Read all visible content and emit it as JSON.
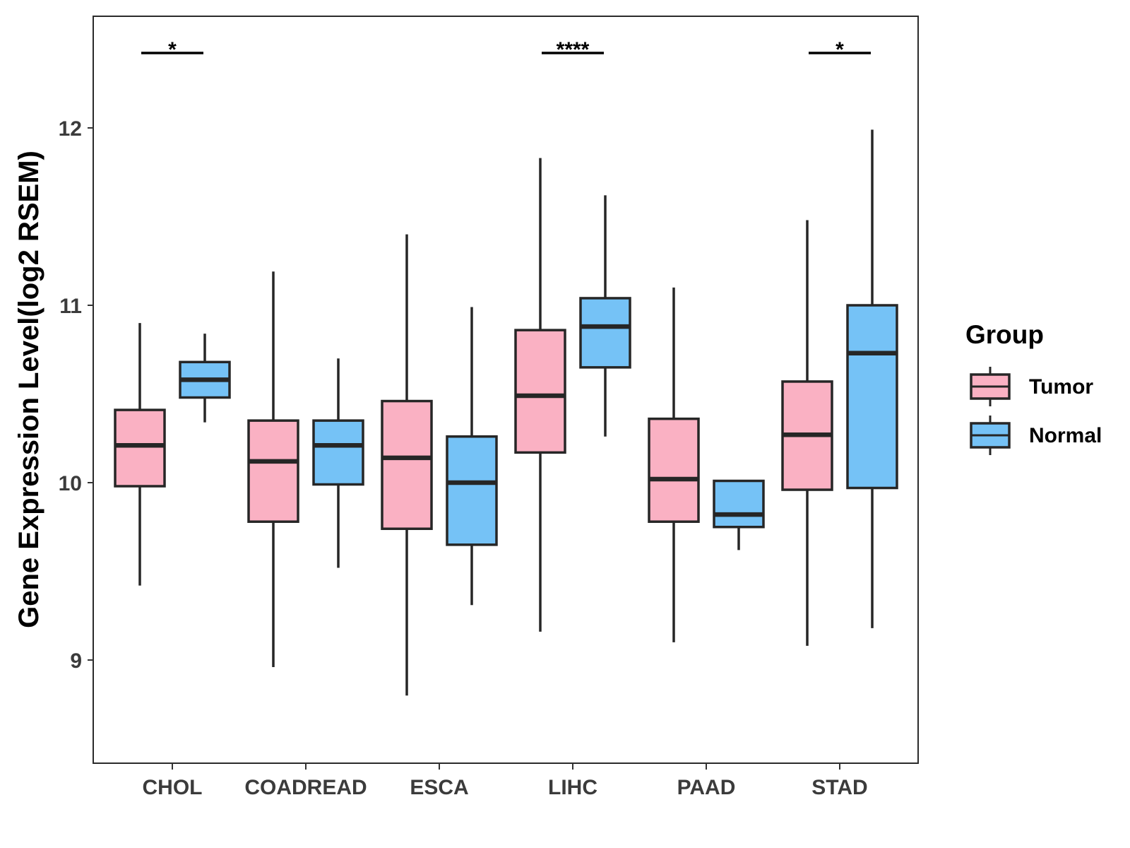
{
  "chart_data": {
    "type": "box",
    "categories": [
      "CHOL",
      "COADREAD",
      "ESCA",
      "LIHC",
      "PAAD",
      "STAD"
    ],
    "ylabel": "Gene Expression Level(log2 RSEM)",
    "xlabel": "",
    "ylim": [
      8.43,
      12.65
    ],
    "yticks": [
      9,
      10,
      11,
      12
    ],
    "grid": false,
    "legend": {
      "title": "Group",
      "position": "right",
      "entries": [
        {
          "name": "Tumor",
          "color": "#FAB1C3"
        },
        {
          "name": "Normal",
          "color": "#75C2F6"
        }
      ]
    },
    "series": [
      {
        "name": "Tumor",
        "color": "#FAB1C3",
        "boxes": [
          {
            "category": "CHOL",
            "min": 9.42,
            "q1": 9.98,
            "median": 10.21,
            "q3": 10.41,
            "max": 10.9
          },
          {
            "category": "COADREAD",
            "min": 8.96,
            "q1": 9.78,
            "median": 10.12,
            "q3": 10.35,
            "max": 11.19
          },
          {
            "category": "ESCA",
            "min": 8.8,
            "q1": 9.74,
            "median": 10.14,
            "q3": 10.46,
            "max": 11.4
          },
          {
            "category": "LIHC",
            "min": 9.16,
            "q1": 10.17,
            "median": 10.49,
            "q3": 10.86,
            "max": 11.83
          },
          {
            "category": "PAAD",
            "min": 9.1,
            "q1": 9.78,
            "median": 10.02,
            "q3": 10.36,
            "max": 11.1
          },
          {
            "category": "STAD",
            "min": 9.08,
            "q1": 9.96,
            "median": 10.27,
            "q3": 10.57,
            "max": 11.48
          }
        ]
      },
      {
        "name": "Normal",
        "color": "#75C2F6",
        "boxes": [
          {
            "category": "CHOL",
            "min": 10.34,
            "q1": 10.48,
            "median": 10.58,
            "q3": 10.68,
            "max": 10.84
          },
          {
            "category": "COADREAD",
            "min": 9.52,
            "q1": 9.99,
            "median": 10.21,
            "q3": 10.35,
            "max": 10.7
          },
          {
            "category": "ESCA",
            "min": 9.31,
            "q1": 9.65,
            "median": 10.0,
            "q3": 10.26,
            "max": 10.99
          },
          {
            "category": "LIHC",
            "min": 10.26,
            "q1": 10.65,
            "median": 10.88,
            "q3": 11.04,
            "max": 11.62
          },
          {
            "category": "PAAD",
            "min": 9.62,
            "q1": 9.75,
            "median": 9.82,
            "q3": 10.01,
            "max": 10.01
          },
          {
            "category": "STAD",
            "min": 9.18,
            "q1": 9.97,
            "median": 10.73,
            "q3": 11.0,
            "max": 11.99
          }
        ]
      }
    ],
    "significance": [
      {
        "category": "CHOL",
        "label": "*"
      },
      {
        "category": "LIHC",
        "label": "****"
      },
      {
        "category": "STAD",
        "label": "*"
      }
    ]
  }
}
